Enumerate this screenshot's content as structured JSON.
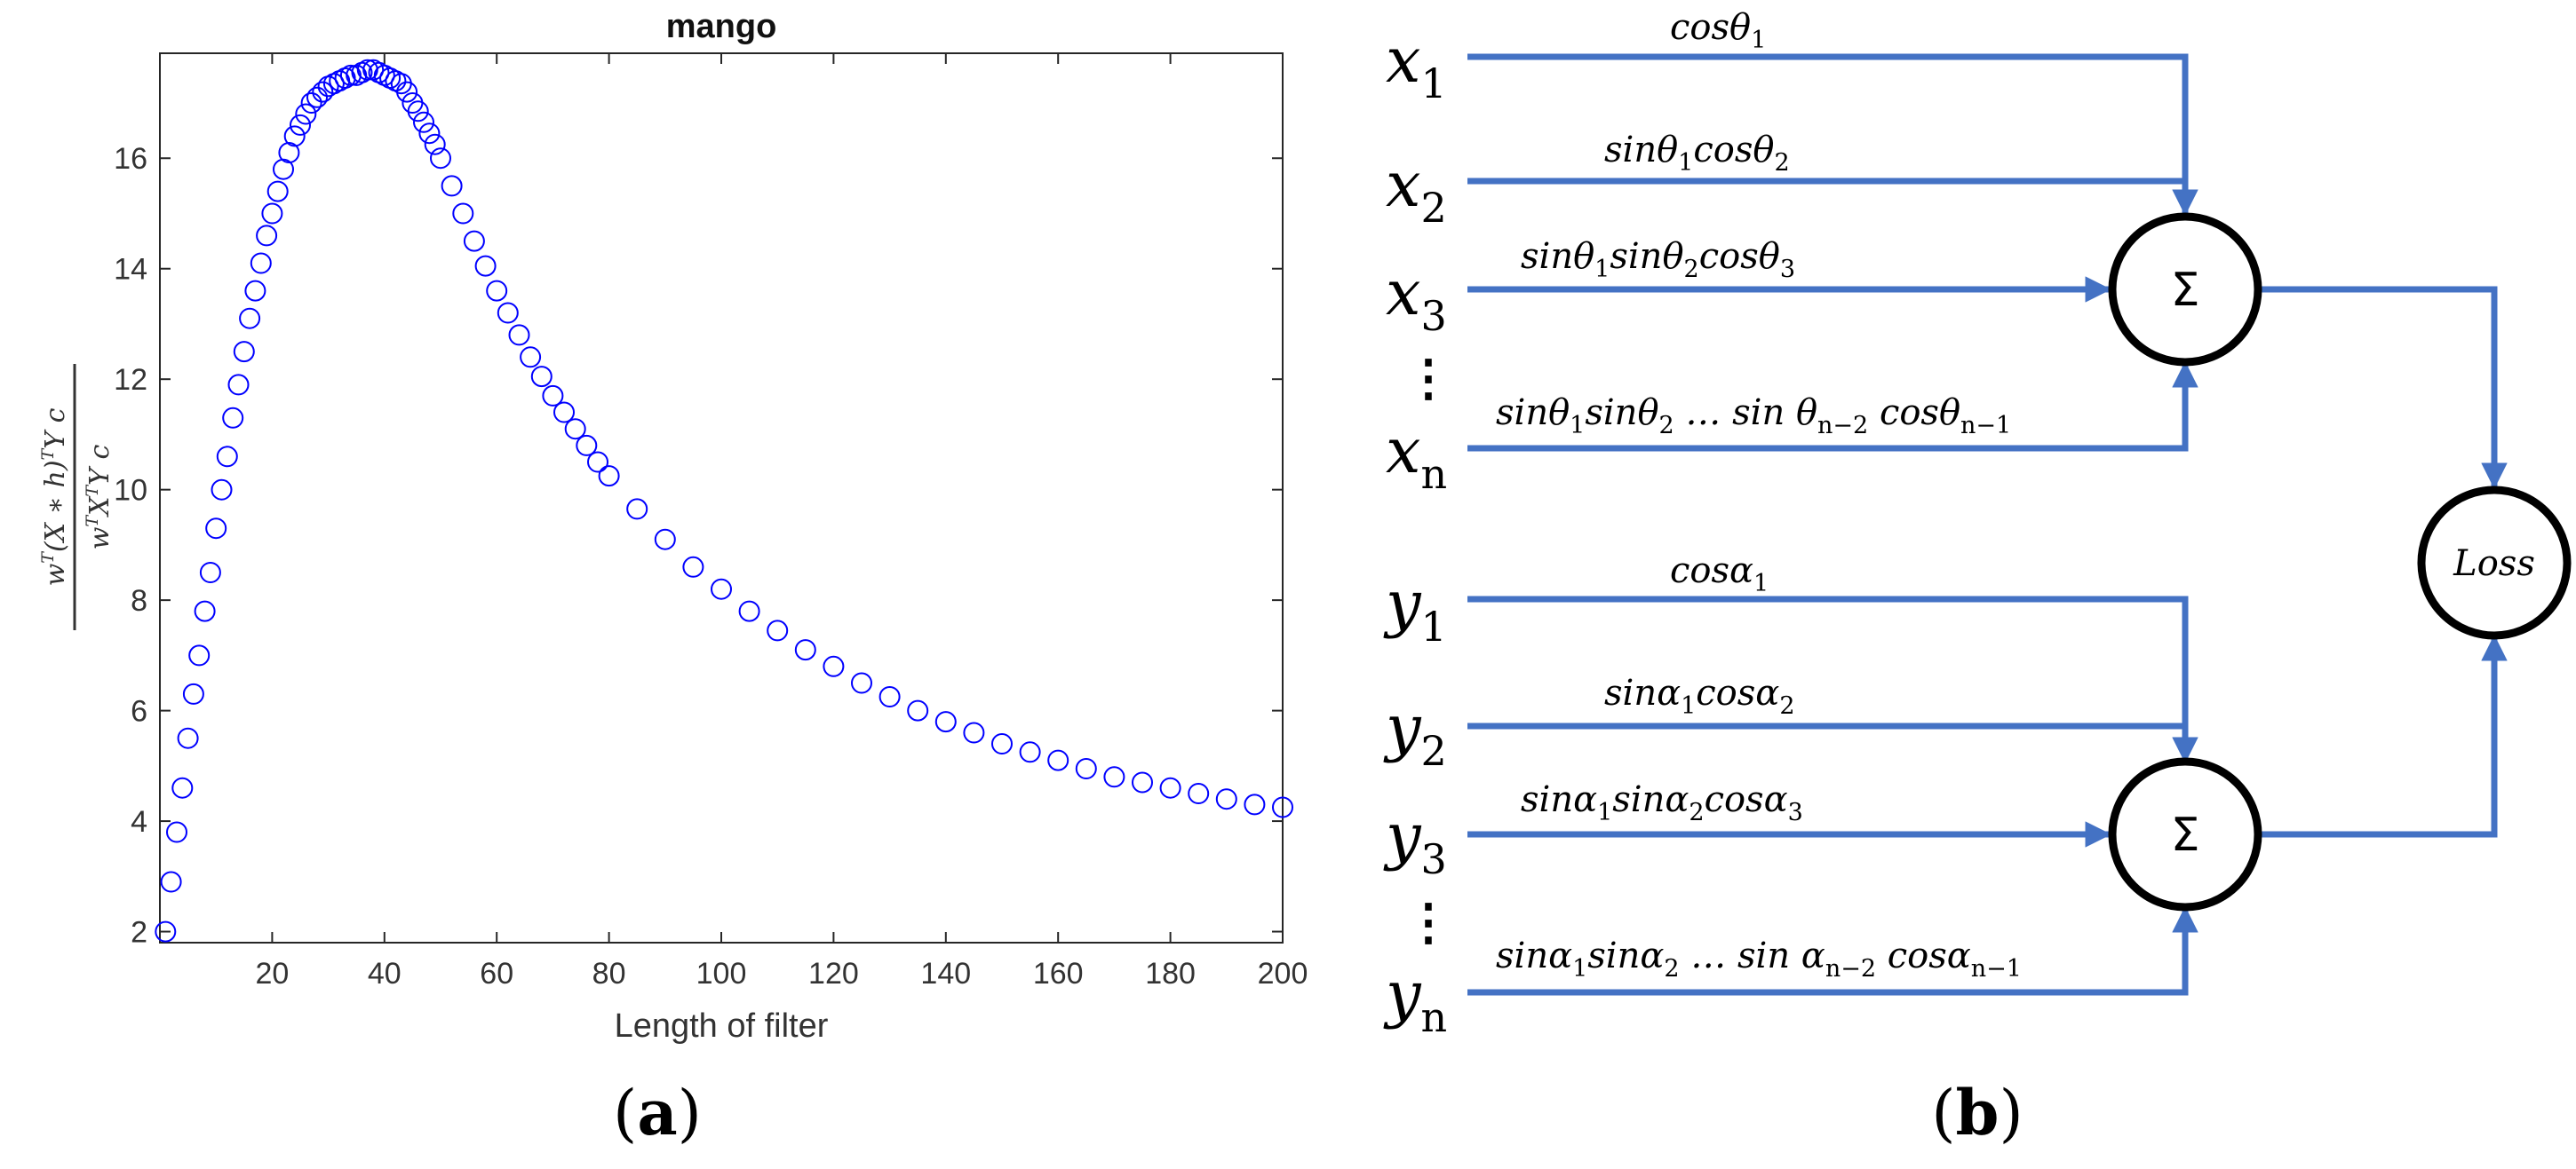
{
  "panels": {
    "a": "(a)",
    "b": "(b)"
  },
  "chart_data": {
    "type": "scatter",
    "title": "mango",
    "xlabel": "Length of filter",
    "ylabel": "w^T (X * h)^T Y c / w^T X^T Y c",
    "xlim": [
      0,
      200
    ],
    "ylim": [
      1.8,
      17.9
    ],
    "xticks": [
      20,
      40,
      60,
      80,
      100,
      120,
      140,
      160,
      180,
      200
    ],
    "yticks": [
      2,
      4,
      6,
      8,
      10,
      12,
      14,
      16
    ],
    "marker": "open-circle",
    "color": "#0000ff",
    "grid": false,
    "series": [
      {
        "name": "mango",
        "x": [
          1,
          2,
          3,
          4,
          5,
          6,
          7,
          8,
          9,
          10,
          11,
          12,
          13,
          14,
          15,
          16,
          17,
          18,
          19,
          20,
          21,
          22,
          23,
          24,
          25,
          26,
          27,
          28,
          29,
          30,
          31,
          32,
          33,
          34,
          35,
          36,
          37,
          38,
          39,
          40,
          41,
          42,
          43,
          44,
          45,
          46,
          47,
          48,
          49,
          50,
          52,
          54,
          56,
          58,
          60,
          62,
          64,
          66,
          68,
          70,
          72,
          74,
          76,
          78,
          80,
          85,
          90,
          95,
          100,
          105,
          110,
          115,
          120,
          125,
          130,
          135,
          140,
          145,
          150,
          155,
          160,
          165,
          170,
          175,
          180,
          185,
          190,
          195,
          200
        ],
        "y": [
          2.0,
          2.9,
          3.8,
          4.6,
          5.5,
          6.3,
          7.0,
          7.8,
          8.5,
          9.3,
          10.0,
          10.6,
          11.3,
          11.9,
          12.5,
          13.1,
          13.6,
          14.1,
          14.6,
          15.0,
          15.4,
          15.8,
          16.1,
          16.4,
          16.6,
          16.8,
          17.0,
          17.1,
          17.2,
          17.3,
          17.35,
          17.4,
          17.45,
          17.5,
          17.5,
          17.55,
          17.6,
          17.6,
          17.55,
          17.5,
          17.45,
          17.4,
          17.35,
          17.2,
          17.0,
          16.85,
          16.65,
          16.45,
          16.25,
          16.0,
          15.5,
          15.0,
          14.5,
          14.05,
          13.6,
          13.2,
          12.8,
          12.4,
          12.05,
          11.7,
          11.4,
          11.1,
          10.8,
          10.5,
          10.25,
          9.65,
          9.1,
          8.6,
          8.2,
          7.8,
          7.45,
          7.1,
          6.8,
          6.5,
          6.25,
          6.0,
          5.8,
          5.6,
          5.4,
          5.25,
          5.1,
          4.95,
          4.8,
          4.7,
          4.6,
          4.5,
          4.4,
          4.3,
          4.25
        ]
      }
    ]
  },
  "diagram": {
    "x_group": {
      "inputs": [
        {
          "var": "x",
          "sub": "1"
        },
        {
          "var": "x",
          "sub": "2"
        },
        {
          "var": "x",
          "sub": "3"
        },
        {
          "var": "x",
          "sub": "n"
        }
      ],
      "dots": "⋮",
      "weights": [
        [
          "cosθ",
          "1"
        ],
        [
          "sinθ",
          "1",
          "cosθ",
          "2"
        ],
        [
          "sinθ",
          "1",
          "sinθ",
          "2",
          "cosθ",
          "3"
        ],
        [
          "sinθ",
          "1",
          "sinθ",
          "2",
          " … sin θ",
          "n−2",
          "  cosθ",
          "n−1"
        ]
      ],
      "sum_symbol": "Σ"
    },
    "y_group": {
      "inputs": [
        {
          "var": "y",
          "sub": "1"
        },
        {
          "var": "y",
          "sub": "2"
        },
        {
          "var": "y",
          "sub": "3"
        },
        {
          "var": "y",
          "sub": "n"
        }
      ],
      "dots": "⋮",
      "weights": [
        [
          "cosα",
          "1"
        ],
        [
          "sinα",
          "1",
          "cosα",
          "2"
        ],
        [
          "sinα",
          "1",
          "sinα",
          "2",
          "cosα",
          "3"
        ],
        [
          "sinα",
          "1",
          "sinα",
          "2",
          " … sin α",
          "n−2",
          "  cosα",
          "n−1"
        ]
      ],
      "sum_symbol": "Σ"
    },
    "loss_label": "Loss",
    "colors": {
      "wire": "#4472C4",
      "node": "#000000"
    }
  }
}
